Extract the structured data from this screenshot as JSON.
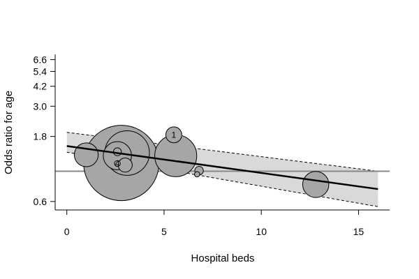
{
  "chart_data": {
    "type": "scatter",
    "subtype": "bubble-meta-regression",
    "xlabel": "Hospital beds",
    "ylabel": "Odds ratio for age",
    "xlim": [
      -0.6,
      16.6
    ],
    "y_scale": "log",
    "ylim": [
      0.52,
      7.2
    ],
    "x_ticks": [
      0,
      5,
      10,
      15
    ],
    "x_tick_labels": [
      "0",
      "5",
      "10",
      "15"
    ],
    "y_ticks": [
      0.6,
      1.8,
      3.0,
      4.2,
      5.4,
      6.6
    ],
    "y_tick_labels": [
      "0.6",
      "1.8",
      "3.0",
      "4.2",
      "5.4",
      "6.6"
    ],
    "reference_line": {
      "y": 1.0,
      "color": "#888888"
    },
    "colors": {
      "bubble_fill": "#a6a6a6",
      "bubble_stroke": "#000000",
      "ci_band": "#d9d9d9",
      "regression_line": "#000000"
    },
    "regression": {
      "x": [
        0,
        16
      ],
      "y": [
        1.53,
        0.74
      ],
      "ci_lower": [
        1.38,
        0.55
      ],
      "ci_upper": [
        1.93,
        1.0
      ]
    },
    "bubbles": [
      {
        "x": 2.8,
        "y": 1.15,
        "weight": 100,
        "label": ""
      },
      {
        "x": 3.1,
        "y": 1.36,
        "weight": 35,
        "label": ""
      },
      {
        "x": 5.6,
        "y": 1.3,
        "weight": 31,
        "label": ""
      },
      {
        "x": 2.6,
        "y": 1.3,
        "weight": 14,
        "label": ""
      },
      {
        "x": 1.0,
        "y": 1.32,
        "weight": 10,
        "label": ""
      },
      {
        "x": 12.8,
        "y": 0.8,
        "weight": 12,
        "label": ""
      },
      {
        "x": 5.5,
        "y": 1.85,
        "weight": 4.5,
        "label": "1"
      },
      {
        "x": 3.0,
        "y": 1.11,
        "weight": 3.5,
        "label": ""
      },
      {
        "x": 2.6,
        "y": 1.14,
        "weight": 0.6,
        "label": "4"
      },
      {
        "x": 6.8,
        "y": 1.01,
        "weight": 1.3,
        "label": ""
      },
      {
        "x": 2.6,
        "y": 1.39,
        "weight": 1.1,
        "label": ""
      },
      {
        "x": 6.7,
        "y": 0.95,
        "weight": 0.5,
        "label": ""
      }
    ]
  }
}
